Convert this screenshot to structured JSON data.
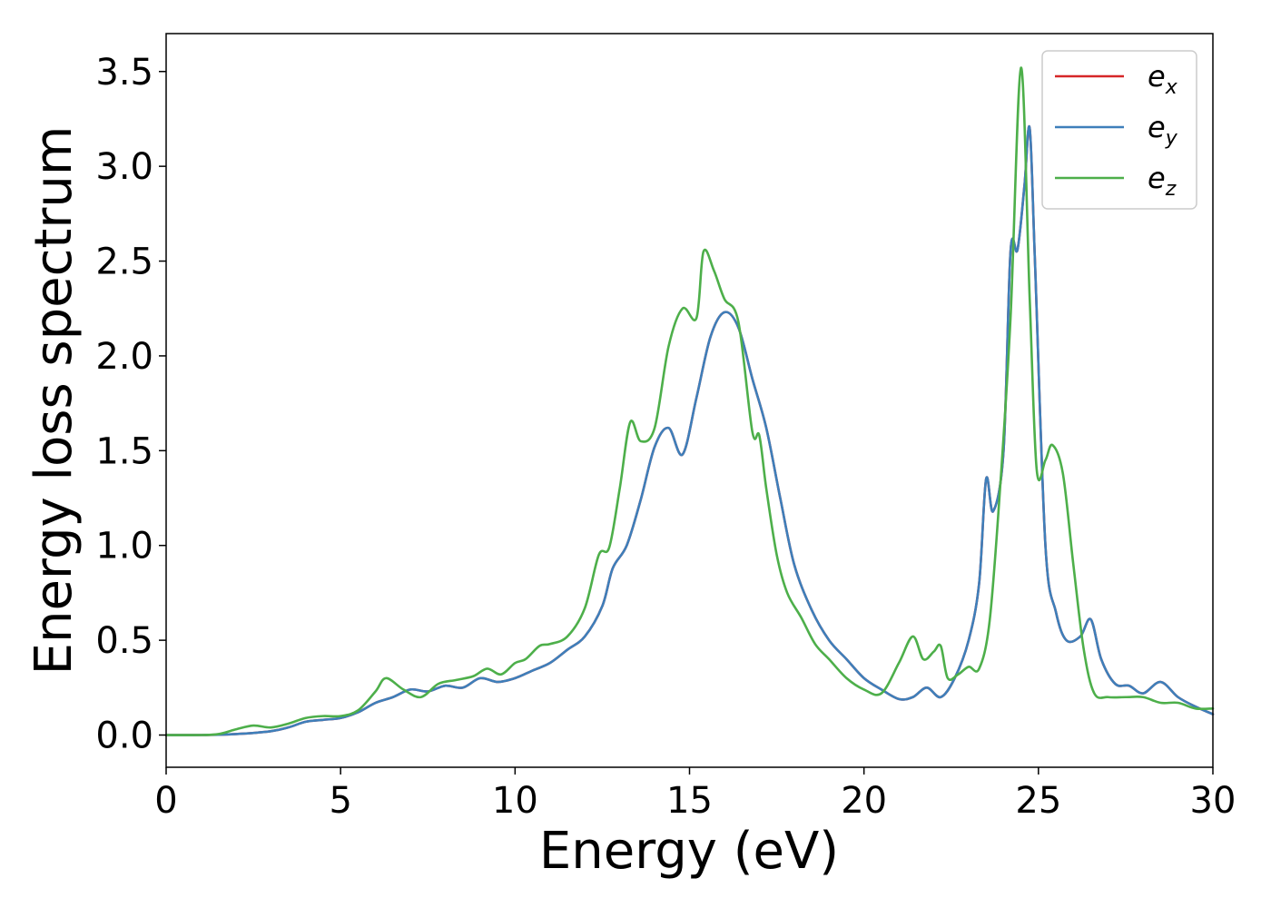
{
  "chart_data": {
    "type": "line",
    "title": "",
    "xlabel": "Energy (eV)",
    "ylabel": "Energy loss spectrum",
    "xlim": [
      0,
      30
    ],
    "ylim": [
      -0.17,
      3.7
    ],
    "xticks": [
      0,
      5,
      10,
      15,
      20,
      25,
      30
    ],
    "xtick_labels": [
      "0",
      "5",
      "10",
      "15",
      "20",
      "25",
      "30"
    ],
    "yticks": [
      0.0,
      0.5,
      1.0,
      1.5,
      2.0,
      2.5,
      3.0,
      3.5
    ],
    "ytick_labels": [
      "0.0",
      "0.5",
      "1.0",
      "1.5",
      "2.0",
      "2.5",
      "3.0",
      "3.5"
    ],
    "grid": false,
    "legend_position": "top-right",
    "series": [
      {
        "name": "e",
        "sub": "x",
        "color": "#d62728",
        "x": [
          0,
          1,
          2,
          3,
          3.5,
          4,
          4.5,
          5,
          5.5,
          6,
          6.5,
          7,
          7.5,
          8,
          8.5,
          9,
          9.5,
          10,
          10.5,
          11,
          11.5,
          12,
          12.5,
          12.8,
          13.2,
          13.6,
          14,
          14.4,
          14.8,
          15.2,
          15.6,
          16,
          16.4,
          16.8,
          17.2,
          17.6,
          18,
          18.5,
          19,
          19.5,
          20,
          20.5,
          21,
          21.4,
          21.8,
          22.2,
          22.6,
          23,
          23.3,
          23.5,
          23.7,
          24,
          24.2,
          24.4,
          24.6,
          24.75,
          24.9,
          25.2,
          25.5,
          25.8,
          26.2,
          26.5,
          26.8,
          27.2,
          27.6,
          28,
          28.5,
          29,
          29.5,
          30
        ],
        "y": [
          0,
          0,
          0.005,
          0.02,
          0.04,
          0.07,
          0.08,
          0.09,
          0.12,
          0.17,
          0.2,
          0.24,
          0.23,
          0.26,
          0.25,
          0.3,
          0.28,
          0.3,
          0.34,
          0.38,
          0.45,
          0.52,
          0.68,
          0.88,
          1.0,
          1.24,
          1.52,
          1.62,
          1.48,
          1.78,
          2.1,
          2.23,
          2.15,
          1.88,
          1.62,
          1.25,
          0.9,
          0.66,
          0.5,
          0.4,
          0.3,
          0.24,
          0.19,
          0.2,
          0.25,
          0.2,
          0.3,
          0.5,
          0.8,
          1.35,
          1.18,
          1.5,
          2.55,
          2.56,
          2.9,
          3.2,
          2.5,
          1.0,
          0.65,
          0.5,
          0.52,
          0.61,
          0.4,
          0.27,
          0.26,
          0.22,
          0.28,
          0.2,
          0.15,
          0.11
        ]
      },
      {
        "name": "e",
        "sub": "y",
        "color": "#3e7fba",
        "x": [
          0,
          1,
          2,
          3,
          3.5,
          4,
          4.5,
          5,
          5.5,
          6,
          6.5,
          7,
          7.5,
          8,
          8.5,
          9,
          9.5,
          10,
          10.5,
          11,
          11.5,
          12,
          12.5,
          12.8,
          13.2,
          13.6,
          14,
          14.4,
          14.8,
          15.2,
          15.6,
          16,
          16.4,
          16.8,
          17.2,
          17.6,
          18,
          18.5,
          19,
          19.5,
          20,
          20.5,
          21,
          21.4,
          21.8,
          22.2,
          22.6,
          23,
          23.3,
          23.5,
          23.7,
          24,
          24.2,
          24.4,
          24.6,
          24.75,
          24.9,
          25.2,
          25.5,
          25.8,
          26.2,
          26.5,
          26.8,
          27.2,
          27.6,
          28,
          28.5,
          29,
          29.5,
          30
        ],
        "y": [
          0,
          0,
          0.005,
          0.02,
          0.04,
          0.07,
          0.08,
          0.09,
          0.12,
          0.17,
          0.2,
          0.24,
          0.23,
          0.26,
          0.25,
          0.3,
          0.28,
          0.3,
          0.34,
          0.38,
          0.45,
          0.52,
          0.68,
          0.88,
          1.0,
          1.24,
          1.52,
          1.62,
          1.48,
          1.78,
          2.1,
          2.23,
          2.15,
          1.88,
          1.62,
          1.25,
          0.9,
          0.66,
          0.5,
          0.4,
          0.3,
          0.24,
          0.19,
          0.2,
          0.25,
          0.2,
          0.3,
          0.5,
          0.8,
          1.35,
          1.18,
          1.5,
          2.55,
          2.56,
          2.9,
          3.2,
          2.5,
          1.0,
          0.65,
          0.5,
          0.52,
          0.61,
          0.4,
          0.27,
          0.26,
          0.22,
          0.28,
          0.2,
          0.15,
          0.11
        ]
      },
      {
        "name": "e",
        "sub": "z",
        "color": "#4daf4a",
        "x": [
          0,
          1,
          1.5,
          2,
          2.5,
          3,
          3.5,
          4,
          4.5,
          5,
          5.5,
          6,
          6.3,
          6.8,
          7.3,
          7.8,
          8.3,
          8.8,
          9.2,
          9.6,
          10,
          10.3,
          10.7,
          11,
          11.5,
          12,
          12.4,
          12.7,
          13,
          13.3,
          13.6,
          14,
          14.4,
          14.8,
          15.2,
          15.4,
          15.7,
          16,
          16.4,
          16.8,
          17.0,
          17.2,
          17.5,
          17.8,
          18.2,
          18.6,
          19,
          19.5,
          20,
          20.5,
          21,
          21.4,
          21.7,
          22.0,
          22.2,
          22.4,
          22.7,
          23.0,
          23.3,
          23.6,
          23.9,
          24.2,
          24.5,
          24.75,
          24.95,
          25.2,
          25.4,
          25.7,
          26.0,
          26.3,
          26.6,
          27,
          27.5,
          28,
          28.5,
          29,
          29.5,
          30
        ],
        "y": [
          0,
          0,
          0.005,
          0.03,
          0.05,
          0.04,
          0.06,
          0.09,
          0.1,
          0.1,
          0.13,
          0.23,
          0.3,
          0.24,
          0.2,
          0.27,
          0.29,
          0.31,
          0.35,
          0.32,
          0.38,
          0.4,
          0.47,
          0.48,
          0.52,
          0.67,
          0.95,
          0.99,
          1.3,
          1.65,
          1.55,
          1.62,
          2.05,
          2.25,
          2.2,
          2.55,
          2.45,
          2.3,
          2.18,
          1.6,
          1.58,
          1.3,
          0.95,
          0.75,
          0.62,
          0.48,
          0.4,
          0.3,
          0.24,
          0.22,
          0.38,
          0.52,
          0.4,
          0.44,
          0.47,
          0.3,
          0.32,
          0.36,
          0.35,
          0.6,
          1.3,
          2.2,
          3.52,
          2.3,
          1.4,
          1.45,
          1.53,
          1.38,
          0.9,
          0.45,
          0.22,
          0.2,
          0.2,
          0.2,
          0.17,
          0.17,
          0.14,
          0.14
        ]
      }
    ]
  }
}
